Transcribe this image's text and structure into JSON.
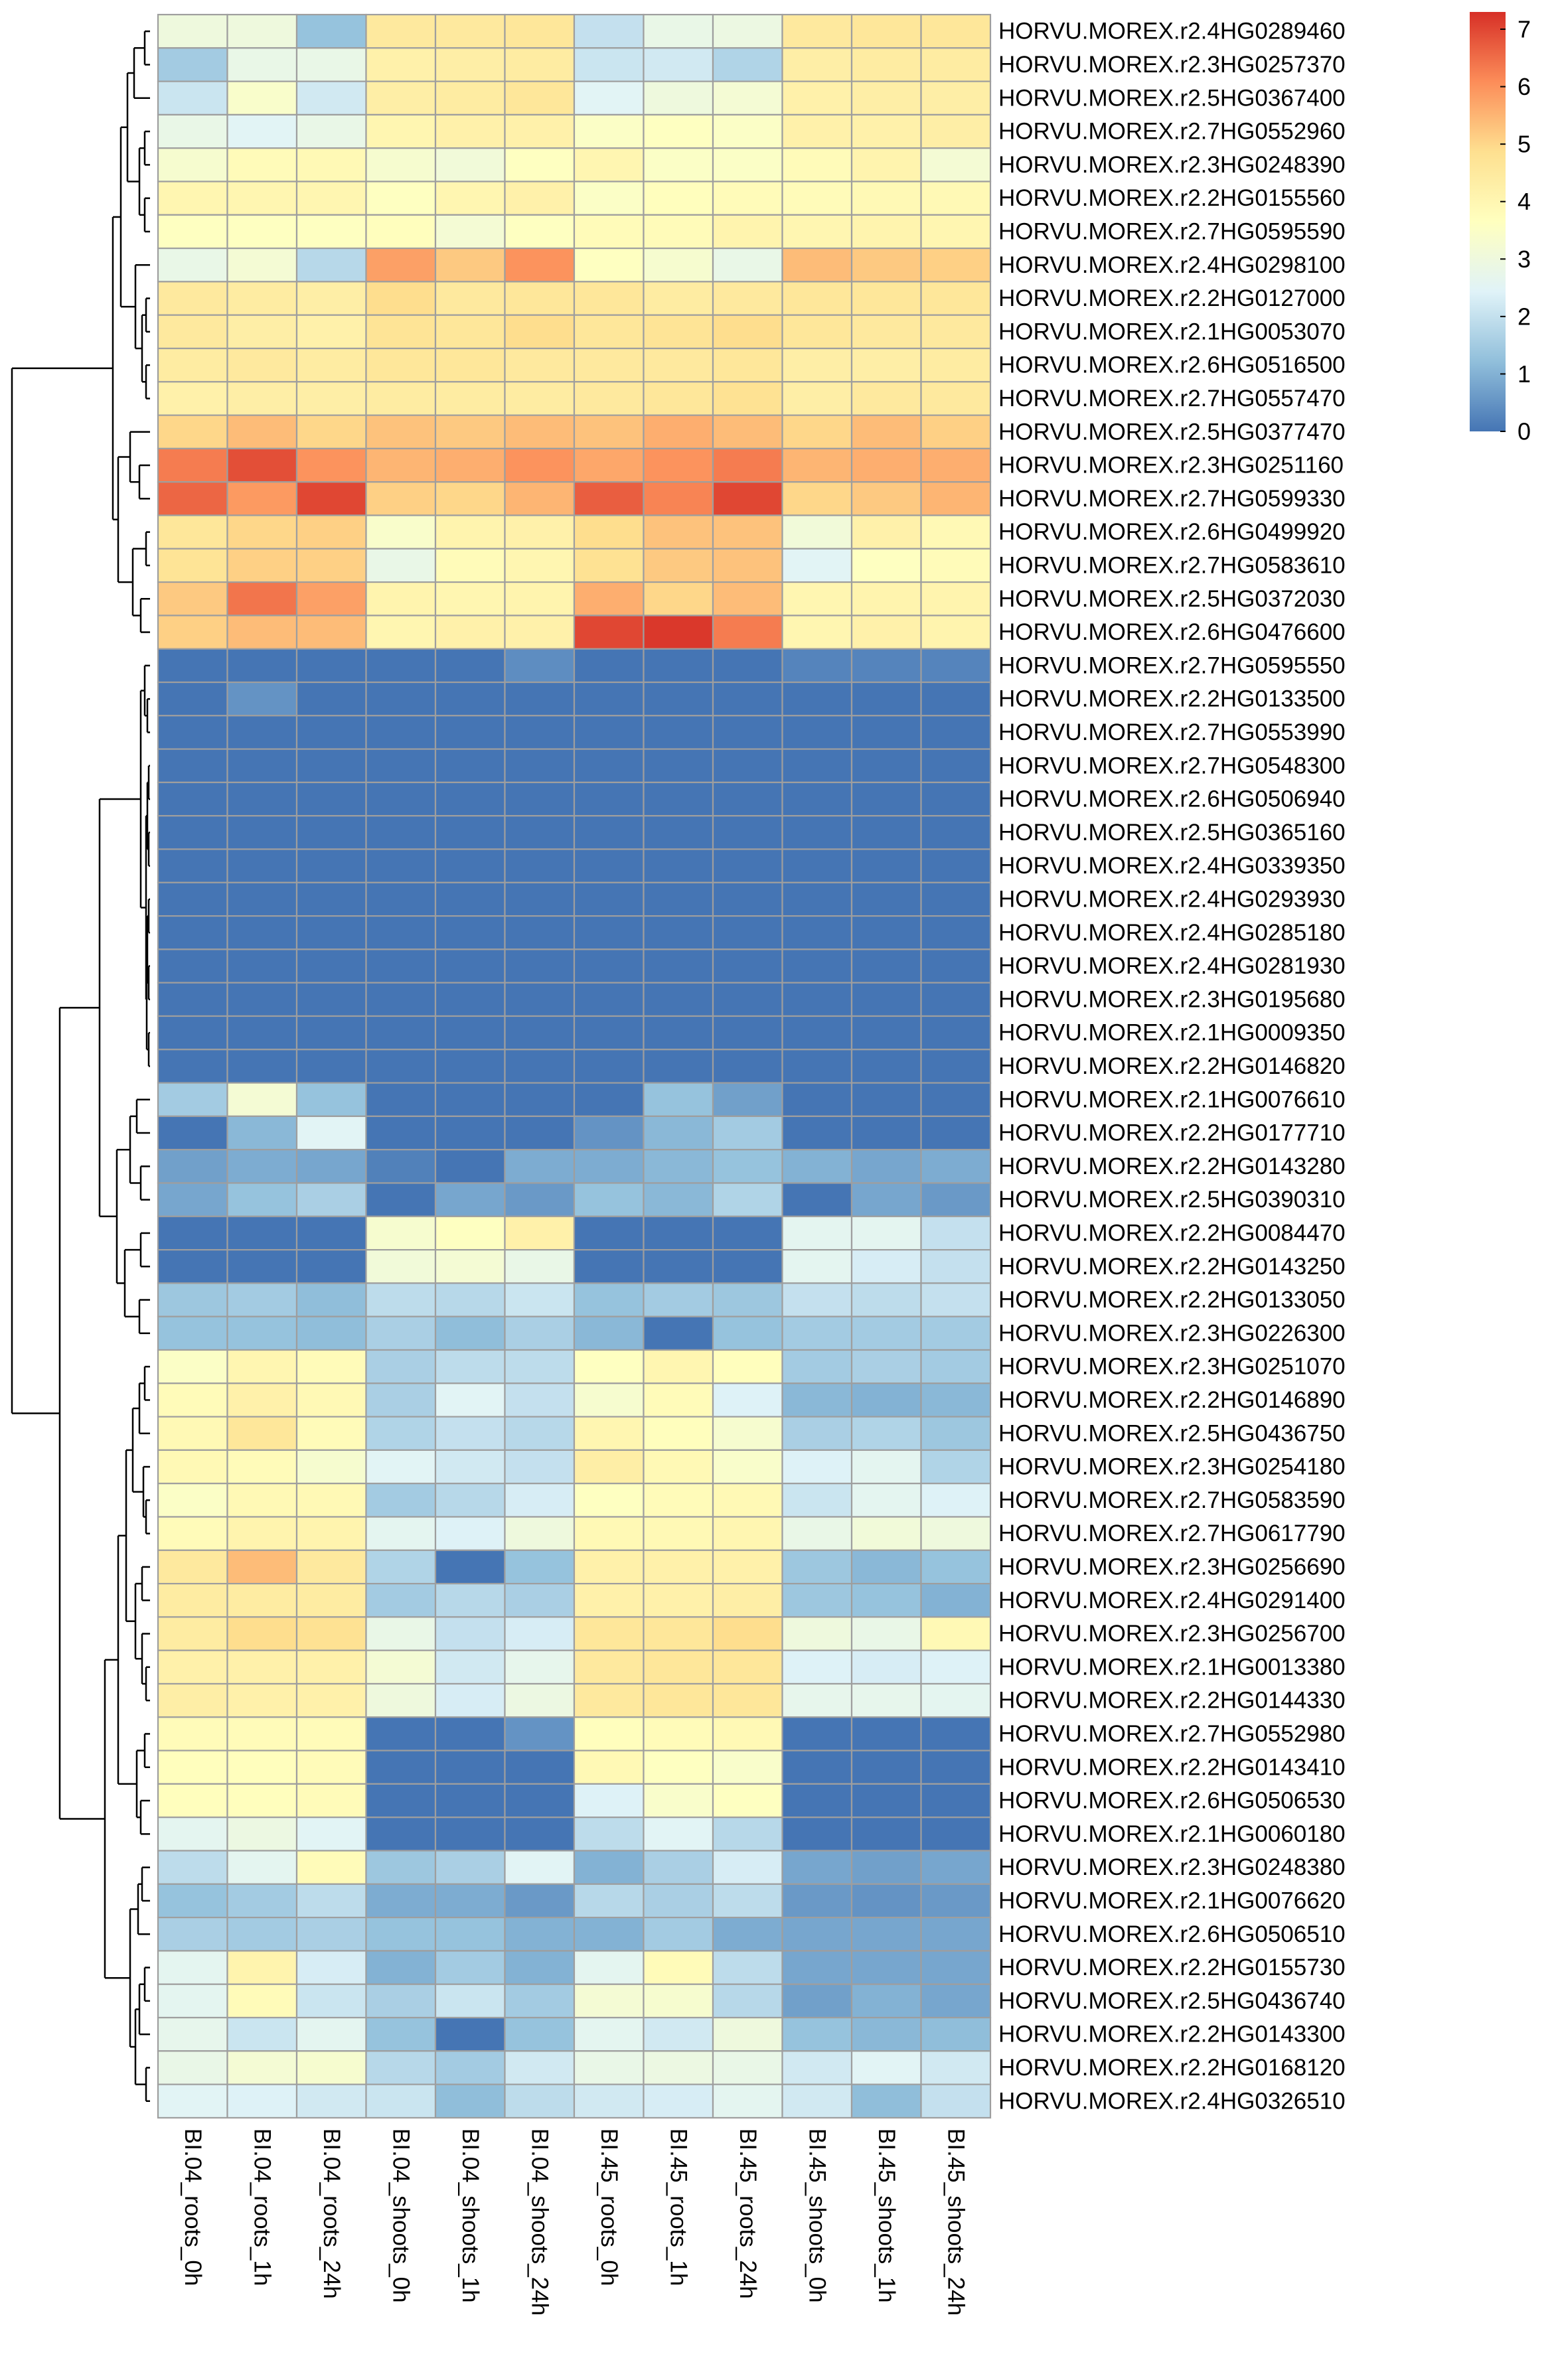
{
  "chart_data": {
    "type": "heatmap",
    "title": "",
    "columns": [
      "BI.04_roots_0h",
      "BI.04_roots_1h",
      "BI.04_roots_24h",
      "BI.04_shoots_0h",
      "BI.04_shoots_1h",
      "BI.04_shoots_24h",
      "BI.45_roots_0h",
      "BI.45_roots_1h",
      "BI.45_roots_24h",
      "BI.45_shoots_0h",
      "BI.45_shoots_1h",
      "BI.45_shoots_24h"
    ],
    "rows": [
      "HORVU.MOREX.r2.4HG0289460",
      "HORVU.MOREX.r2.3HG0257370",
      "HORVU.MOREX.r2.5HG0367400",
      "HORVU.MOREX.r2.7HG0552960",
      "HORVU.MOREX.r2.3HG0248390",
      "HORVU.MOREX.r2.2HG0155560",
      "HORVU.MOREX.r2.7HG0595590",
      "HORVU.MOREX.r2.4HG0298100",
      "HORVU.MOREX.r2.2HG0127000",
      "HORVU.MOREX.r2.1HG0053070",
      "HORVU.MOREX.r2.6HG0516500",
      "HORVU.MOREX.r2.7HG0557470",
      "HORVU.MOREX.r2.5HG0377470",
      "HORVU.MOREX.r2.3HG0251160",
      "HORVU.MOREX.r2.7HG0599330",
      "HORVU.MOREX.r2.6HG0499920",
      "HORVU.MOREX.r2.7HG0583610",
      "HORVU.MOREX.r2.5HG0372030",
      "HORVU.MOREX.r2.6HG0476600",
      "HORVU.MOREX.r2.7HG0595550",
      "HORVU.MOREX.r2.2HG0133500",
      "HORVU.MOREX.r2.7HG0553990",
      "HORVU.MOREX.r2.7HG0548300",
      "HORVU.MOREX.r2.6HG0506940",
      "HORVU.MOREX.r2.5HG0365160",
      "HORVU.MOREX.r2.4HG0339350",
      "HORVU.MOREX.r2.4HG0293930",
      "HORVU.MOREX.r2.4HG0285180",
      "HORVU.MOREX.r2.4HG0281930",
      "HORVU.MOREX.r2.3HG0195680",
      "HORVU.MOREX.r2.1HG0009350",
      "HORVU.MOREX.r2.2HG0146820",
      "HORVU.MOREX.r2.1HG0076610",
      "HORVU.MOREX.r2.2HG0177710",
      "HORVU.MOREX.r2.2HG0143280",
      "HORVU.MOREX.r2.5HG0390310",
      "HORVU.MOREX.r2.2HG0084470",
      "HORVU.MOREX.r2.2HG0143250",
      "HORVU.MOREX.r2.2HG0133050",
      "HORVU.MOREX.r2.3HG0226300",
      "HORVU.MOREX.r2.3HG0251070",
      "HORVU.MOREX.r2.2HG0146890",
      "HORVU.MOREX.r2.5HG0436750",
      "HORVU.MOREX.r2.3HG0254180",
      "HORVU.MOREX.r2.7HG0583590",
      "HORVU.MOREX.r2.7HG0617790",
      "HORVU.MOREX.r2.3HG0256690",
      "HORVU.MOREX.r2.4HG0291400",
      "HORVU.MOREX.r2.3HG0256700",
      "HORVU.MOREX.r2.1HG0013380",
      "HORVU.MOREX.r2.2HG0144330",
      "HORVU.MOREX.r2.7HG0552980",
      "HORVU.MOREX.r2.2HG0143410",
      "HORVU.MOREX.r2.6HG0506530",
      "HORVU.MOREX.r2.1HG0060180",
      "HORVU.MOREX.r2.3HG0248380",
      "HORVU.MOREX.r2.1HG0076620",
      "HORVU.MOREX.r2.6HG0506510",
      "HORVU.MOREX.r2.2HG0155730",
      "HORVU.MOREX.r2.5HG0436740",
      "HORVU.MOREX.r2.2HG0143300",
      "HORVU.MOREX.r2.2HG0168120",
      "HORVU.MOREX.r2.4HG0326510"
    ],
    "values": [
      [
        3.0,
        3.0,
        1.3,
        4.5,
        4.5,
        4.6,
        2.0,
        2.8,
        2.9,
        4.5,
        4.6,
        4.6
      ],
      [
        1.5,
        2.8,
        2.8,
        4.2,
        4.3,
        4.4,
        2.1,
        2.2,
        1.7,
        4.3,
        4.4,
        4.4
      ],
      [
        2.1,
        3.4,
        2.2,
        4.3,
        4.4,
        4.6,
        2.5,
        3.0,
        3.2,
        4.2,
        4.3,
        4.3
      ],
      [
        2.8,
        2.5,
        2.8,
        4.0,
        4.2,
        4.2,
        3.5,
        3.6,
        3.5,
        4.2,
        4.2,
        4.3
      ],
      [
        3.3,
        3.8,
        3.9,
        3.3,
        3.1,
        3.6,
        4.0,
        3.5,
        3.5,
        3.8,
        4.1,
        3.2
      ],
      [
        4.0,
        4.0,
        4.0,
        3.6,
        4.0,
        4.2,
        3.5,
        3.7,
        3.8,
        3.8,
        3.9,
        3.9
      ],
      [
        3.6,
        3.6,
        3.6,
        3.7,
        3.2,
        3.6,
        3.8,
        3.8,
        4.1,
        4.0,
        4.1,
        4.0
      ],
      [
        2.8,
        3.2,
        1.8,
        5.8,
        5.2,
        6.0,
        3.6,
        3.3,
        2.8,
        5.4,
        5.2,
        5.1
      ],
      [
        4.5,
        4.4,
        4.3,
        4.9,
        4.5,
        4.6,
        4.6,
        4.4,
        4.5,
        4.6,
        4.6,
        4.6
      ],
      [
        4.5,
        4.3,
        4.2,
        4.7,
        4.6,
        4.9,
        4.6,
        4.7,
        4.9,
        4.6,
        4.5,
        4.5
      ],
      [
        4.4,
        4.5,
        4.4,
        4.6,
        4.6,
        4.5,
        4.5,
        4.5,
        4.6,
        4.3,
        4.3,
        4.4
      ],
      [
        4.2,
        4.3,
        4.3,
        4.4,
        4.4,
        4.4,
        4.5,
        4.6,
        4.8,
        4.3,
        4.5,
        4.5
      ],
      [
        5.0,
        5.4,
        5.0,
        5.3,
        5.2,
        5.4,
        5.3,
        5.6,
        5.4,
        5.0,
        5.4,
        5.1
      ],
      [
        6.3,
        6.9,
        6.0,
        5.5,
        5.6,
        6.0,
        5.7,
        6.0,
        6.3,
        5.5,
        5.6,
        5.6
      ],
      [
        6.6,
        5.9,
        7.0,
        5.1,
        5.0,
        5.5,
        6.7,
        6.2,
        7.0,
        5.0,
        5.2,
        5.5
      ],
      [
        4.6,
        5.0,
        5.1,
        3.4,
        4.1,
        4.2,
        4.9,
        5.3,
        5.3,
        3.1,
        4.2,
        3.9
      ],
      [
        4.7,
        5.1,
        5.1,
        2.8,
        3.8,
        4.0,
        4.8,
        5.2,
        5.3,
        2.5,
        3.6,
        3.8
      ],
      [
        5.2,
        6.4,
        5.8,
        4.1,
        4.0,
        4.1,
        5.6,
        5.0,
        5.4,
        4.0,
        4.1,
        4.1
      ],
      [
        5.1,
        5.4,
        5.4,
        4.0,
        4.2,
        4.2,
        7.0,
        7.2,
        6.3,
        4.0,
        4.2,
        4.1
      ],
      [
        0.0,
        0.0,
        0.0,
        0.0,
        0.0,
        0.4,
        0.0,
        0.0,
        0.0,
        0.25,
        0.25,
        0.25
      ],
      [
        0.0,
        0.5,
        0.0,
        0.0,
        0.0,
        0.0,
        0.0,
        0.0,
        0.0,
        0.0,
        0.0,
        0.0
      ],
      [
        0.0,
        0.0,
        0.0,
        0.0,
        0.0,
        0.0,
        0.0,
        0.0,
        0.0,
        0.0,
        0.0,
        0.0
      ],
      [
        0.0,
        0.0,
        0.0,
        0.0,
        0.0,
        0.0,
        0.0,
        0.0,
        0.0,
        0.0,
        0.0,
        0.0
      ],
      [
        0.0,
        0.0,
        0.0,
        0.0,
        0.0,
        0.0,
        0.0,
        0.0,
        0.0,
        0.0,
        0.0,
        0.0
      ],
      [
        0.0,
        0.0,
        0.0,
        0.0,
        0.0,
        0.0,
        0.0,
        0.0,
        0.0,
        0.0,
        0.0,
        0.0
      ],
      [
        0.0,
        0.0,
        0.0,
        0.0,
        0.0,
        0.0,
        0.0,
        0.0,
        0.0,
        0.0,
        0.0,
        0.0
      ],
      [
        0.0,
        0.0,
        0.0,
        0.0,
        0.0,
        0.0,
        0.0,
        0.0,
        0.0,
        0.0,
        0.0,
        0.0
      ],
      [
        0.0,
        0.0,
        0.0,
        0.0,
        0.0,
        0.0,
        0.0,
        0.0,
        0.0,
        0.0,
        0.0,
        0.0
      ],
      [
        0.0,
        0.0,
        0.0,
        0.0,
        0.0,
        0.0,
        0.0,
        0.0,
        0.0,
        0.0,
        0.0,
        0.0
      ],
      [
        0.0,
        0.0,
        0.0,
        0.0,
        0.0,
        0.0,
        0.0,
        0.0,
        0.0,
        0.0,
        0.0,
        0.0
      ],
      [
        0.0,
        0.0,
        0.0,
        0.0,
        0.0,
        0.0,
        0.0,
        0.0,
        0.0,
        0.0,
        0.0,
        0.0
      ],
      [
        0.0,
        0.0,
        0.0,
        0.0,
        0.0,
        0.0,
        0.0,
        0.0,
        0.0,
        0.0,
        0.0,
        0.0
      ],
      [
        1.5,
        3.2,
        1.3,
        0.0,
        0.0,
        0.0,
        0.0,
        1.3,
        0.7,
        0.0,
        0.0,
        0.0
      ],
      [
        0.0,
        1.1,
        2.5,
        0.0,
        0.0,
        0.0,
        0.5,
        1.1,
        1.5,
        0.0,
        0.0,
        0.0
      ],
      [
        0.7,
        0.9,
        0.8,
        0.2,
        0.0,
        0.9,
        0.9,
        1.1,
        1.3,
        1.0,
        0.8,
        0.9
      ],
      [
        0.8,
        1.3,
        1.6,
        0.0,
        0.8,
        0.6,
        1.3,
        1.1,
        1.7,
        0.0,
        0.8,
        0.6
      ],
      [
        0.0,
        0.0,
        0.0,
        3.3,
        3.6,
        4.2,
        0.0,
        0.0,
        0.0,
        2.6,
        2.6,
        2.0
      ],
      [
        0.0,
        0.0,
        0.0,
        3.1,
        3.2,
        2.8,
        0.0,
        0.0,
        0.0,
        2.6,
        2.3,
        2.0
      ],
      [
        1.4,
        1.5,
        1.2,
        1.9,
        1.8,
        2.1,
        1.3,
        1.5,
        1.4,
        2.0,
        1.9,
        2.0
      ],
      [
        1.3,
        1.3,
        1.2,
        1.6,
        1.2,
        1.6,
        1.1,
        0.0,
        1.3,
        1.5,
        1.5,
        1.5
      ],
      [
        3.5,
        4.0,
        3.8,
        1.6,
        1.9,
        1.9,
        3.6,
        4.0,
        3.7,
        1.5,
        1.6,
        1.5
      ],
      [
        3.8,
        4.2,
        3.9,
        1.6,
        2.5,
        2.0,
        3.3,
        3.8,
        2.4,
        1.1,
        1.0,
        1.1
      ],
      [
        3.9,
        4.6,
        3.8,
        1.7,
        2.0,
        1.8,
        4.0,
        3.7,
        3.3,
        1.6,
        1.7,
        1.4
      ],
      [
        3.9,
        3.8,
        3.3,
        2.5,
        2.2,
        2.0,
        4.3,
        3.9,
        3.4,
        2.4,
        2.6,
        1.7
      ],
      [
        3.5,
        3.9,
        3.9,
        1.5,
        1.8,
        2.3,
        3.6,
        3.8,
        3.9,
        2.1,
        2.6,
        2.4
      ],
      [
        3.8,
        4.1,
        4.1,
        2.6,
        2.4,
        3.0,
        3.9,
        3.9,
        4.0,
        2.8,
        3.1,
        3.0
      ],
      [
        4.5,
        5.4,
        4.5,
        1.7,
        0.0,
        1.3,
        4.2,
        4.2,
        4.2,
        1.4,
        1.1,
        1.3
      ],
      [
        4.4,
        4.4,
        4.4,
        1.5,
        1.8,
        1.6,
        4.2,
        4.2,
        4.3,
        1.4,
        1.3,
        1.0
      ],
      [
        4.4,
        4.9,
        4.8,
        2.8,
        2.0,
        2.3,
        4.6,
        4.6,
        4.9,
        3.0,
        2.8,
        3.9
      ],
      [
        4.2,
        4.2,
        4.2,
        3.2,
        2.2,
        2.7,
        4.5,
        4.6,
        4.6,
        2.4,
        2.3,
        2.4
      ],
      [
        4.3,
        4.2,
        4.2,
        3.0,
        2.3,
        2.9,
        4.5,
        4.6,
        4.6,
        2.7,
        2.7,
        2.6
      ],
      [
        3.8,
        3.8,
        3.8,
        0.0,
        0.0,
        0.5,
        3.7,
        3.8,
        3.9,
        0.0,
        0.0,
        0.0
      ],
      [
        3.7,
        3.7,
        3.8,
        0.0,
        0.0,
        0.0,
        3.9,
        3.6,
        3.4,
        0.0,
        0.0,
        0.0
      ],
      [
        3.7,
        3.7,
        3.8,
        0.0,
        0.0,
        0.0,
        2.4,
        3.4,
        3.6,
        0.0,
        0.0,
        0.0
      ],
      [
        2.6,
        2.9,
        2.5,
        0.0,
        0.0,
        0.0,
        1.9,
        2.5,
        1.8,
        0.0,
        0.0,
        0.0
      ],
      [
        1.9,
        2.6,
        3.8,
        1.4,
        1.6,
        2.5,
        1.0,
        1.6,
        2.3,
        0.8,
        0.7,
        0.8
      ],
      [
        1.3,
        1.5,
        1.9,
        0.9,
        0.9,
        0.6,
        1.8,
        1.6,
        1.9,
        0.6,
        0.5,
        0.6
      ],
      [
        1.6,
        1.5,
        1.6,
        1.3,
        1.3,
        1.0,
        1.0,
        1.5,
        0.9,
        0.8,
        0.8,
        0.8
      ],
      [
        2.6,
        4.1,
        2.3,
        1.0,
        1.5,
        1.0,
        2.6,
        3.8,
        1.9,
        0.8,
        0.8,
        0.8
      ],
      [
        2.6,
        3.8,
        2.1,
        1.6,
        2.1,
        1.5,
        3.2,
        3.3,
        1.8,
        0.7,
        1.0,
        0.8
      ],
      [
        2.7,
        2.1,
        2.6,
        1.3,
        0.0,
        1.3,
        2.6,
        2.2,
        3.0,
        1.3,
        1.1,
        1.2
      ],
      [
        2.8,
        3.2,
        3.3,
        1.8,
        1.5,
        2.2,
        2.8,
        2.9,
        2.8,
        2.2,
        2.5,
        2.2
      ],
      [
        2.5,
        2.4,
        2.2,
        2.1,
        1.2,
        1.9,
        2.2,
        2.3,
        2.6,
        2.2,
        1.2,
        2.0
      ]
    ],
    "color_scale": {
      "min": 0,
      "max": 7.3,
      "stops": [
        "#4575B4",
        "#91BFDB",
        "#E0F3F8",
        "#FFFFBF",
        "#FEE090",
        "#FC8D59",
        "#D73027"
      ],
      "cell_border": "#9E9E9E",
      "tree_color": "#000000"
    },
    "legend": {
      "placement": "top-right",
      "ticks": [
        "0",
        "1",
        "2",
        "3",
        "4",
        "5",
        "6",
        "7"
      ]
    },
    "row_dendrogram": true,
    "column_dendrogram": false
  }
}
